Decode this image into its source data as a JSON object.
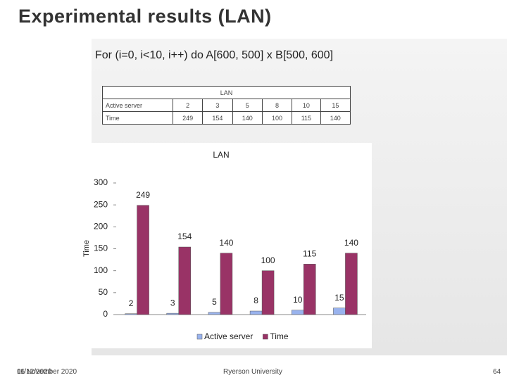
{
  "slide": {
    "title": "Experimental results (LAN)",
    "subtitle": "For (i=0, i<10, i++) do A[600, 500] x B[500, 600]"
  },
  "table": {
    "header": "LAN",
    "rows": [
      [
        "Active server",
        2,
        3,
        5,
        8,
        10,
        15
      ],
      [
        "Time",
        249,
        154,
        140,
        100,
        115,
        140
      ]
    ]
  },
  "chart_data": {
    "type": "bar",
    "title": "LAN",
    "y_label": "Time",
    "categories": [
      null,
      null,
      null,
      null,
      null,
      null
    ],
    "series": [
      {
        "name": "Active server",
        "color": "#99b3ee",
        "values": [
          2,
          3,
          5,
          8,
          10,
          15
        ]
      },
      {
        "name": "Time",
        "color": "#993366",
        "values": [
          249,
          154,
          140,
          100,
          115,
          140
        ]
      }
    ],
    "ylim": [
      0,
      300
    ],
    "yticks": [
      0,
      50,
      100,
      150,
      200,
      250,
      300
    ],
    "legend": "bottom"
  },
  "footer": {
    "date": "11/12/2020",
    "date_long": "06 November 2020",
    "organization": "Ryerson University",
    "page": "64"
  }
}
